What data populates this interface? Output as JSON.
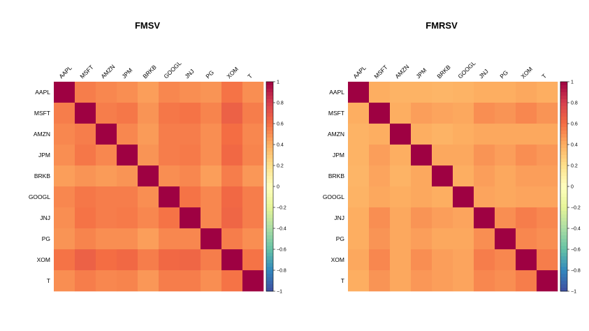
{
  "chart_data": [
    {
      "type": "heatmap",
      "title": "FMSV",
      "labels": [
        "AAPL",
        "MSFT",
        "AMZN",
        "JPM",
        "BRKB",
        "GOOGL",
        "JNJ",
        "PG",
        "XOM",
        "T"
      ],
      "values": [
        [
          1.0,
          0.55,
          0.52,
          0.5,
          0.45,
          0.52,
          0.5,
          0.48,
          0.58,
          0.5
        ],
        [
          0.55,
          1.0,
          0.55,
          0.57,
          0.48,
          0.57,
          0.58,
          0.53,
          0.65,
          0.55
        ],
        [
          0.52,
          0.55,
          1.0,
          0.52,
          0.46,
          0.55,
          0.55,
          0.5,
          0.6,
          0.52
        ],
        [
          0.5,
          0.57,
          0.52,
          1.0,
          0.48,
          0.55,
          0.56,
          0.5,
          0.62,
          0.53
        ],
        [
          0.45,
          0.48,
          0.46,
          0.48,
          1.0,
          0.5,
          0.52,
          0.45,
          0.55,
          0.47
        ],
        [
          0.52,
          0.57,
          0.55,
          0.55,
          0.5,
          1.0,
          0.58,
          0.52,
          0.62,
          0.55
        ],
        [
          0.5,
          0.58,
          0.55,
          0.56,
          0.52,
          0.58,
          1.0,
          0.52,
          0.63,
          0.55
        ],
        [
          0.48,
          0.53,
          0.5,
          0.5,
          0.45,
          0.52,
          0.52,
          1.0,
          0.55,
          0.5
        ],
        [
          0.58,
          0.65,
          0.6,
          0.62,
          0.55,
          0.62,
          0.63,
          0.55,
          1.0,
          0.58
        ],
        [
          0.5,
          0.55,
          0.52,
          0.53,
          0.47,
          0.55,
          0.55,
          0.5,
          0.58,
          1.0
        ]
      ],
      "zlim": [
        -1,
        1
      ],
      "colorbar_ticks": [
        "1",
        "0.8",
        "0.6",
        "0.4",
        "0.2",
        "0",
        "−0.2",
        "−0.4",
        "−0.6",
        "−0.8",
        "−1"
      ]
    },
    {
      "type": "heatmap",
      "title": "FMRSV",
      "labels": [
        "AAPL",
        "MSFT",
        "AMZN",
        "JPM",
        "BRKB",
        "GOOGL",
        "JNJ",
        "PG",
        "XOM",
        "T"
      ],
      "values": [
        [
          1.0,
          0.4,
          0.38,
          0.38,
          0.37,
          0.38,
          0.4,
          0.4,
          0.42,
          0.4
        ],
        [
          0.4,
          1.0,
          0.4,
          0.45,
          0.43,
          0.42,
          0.5,
          0.48,
          0.52,
          0.48
        ],
        [
          0.38,
          0.4,
          1.0,
          0.4,
          0.38,
          0.4,
          0.42,
          0.42,
          0.42,
          0.42
        ],
        [
          0.38,
          0.45,
          0.4,
          1.0,
          0.42,
          0.42,
          0.48,
          0.45,
          0.5,
          0.47
        ],
        [
          0.37,
          0.43,
          0.38,
          0.42,
          1.0,
          0.4,
          0.45,
          0.42,
          0.45,
          0.45
        ],
        [
          0.38,
          0.42,
          0.4,
          0.42,
          0.4,
          1.0,
          0.43,
          0.42,
          0.43,
          0.43
        ],
        [
          0.4,
          0.5,
          0.42,
          0.48,
          0.45,
          0.43,
          1.0,
          0.5,
          0.55,
          0.52
        ],
        [
          0.4,
          0.48,
          0.42,
          0.45,
          0.42,
          0.42,
          0.5,
          1.0,
          0.52,
          0.5
        ],
        [
          0.42,
          0.52,
          0.42,
          0.5,
          0.45,
          0.43,
          0.55,
          0.52,
          1.0,
          0.55
        ],
        [
          0.4,
          0.48,
          0.42,
          0.47,
          0.45,
          0.43,
          0.52,
          0.5,
          0.55,
          1.0
        ]
      ],
      "zlim": [
        -1,
        1
      ],
      "colorbar_ticks": [
        "1",
        "0.8",
        "0.6",
        "0.4",
        "0.2",
        "0",
        "−0.2",
        "−0.4",
        "−0.6",
        "−0.8",
        "−1"
      ]
    }
  ],
  "colors": {
    "palette": [
      "#3F4EA1",
      "#3288BD",
      "#66C2A5",
      "#ABDDA4",
      "#E6F598",
      "#FFFFBF",
      "#FEE08B",
      "#FDAE61",
      "#F46D43",
      "#D53E4F",
      "#9E0142"
    ]
  }
}
